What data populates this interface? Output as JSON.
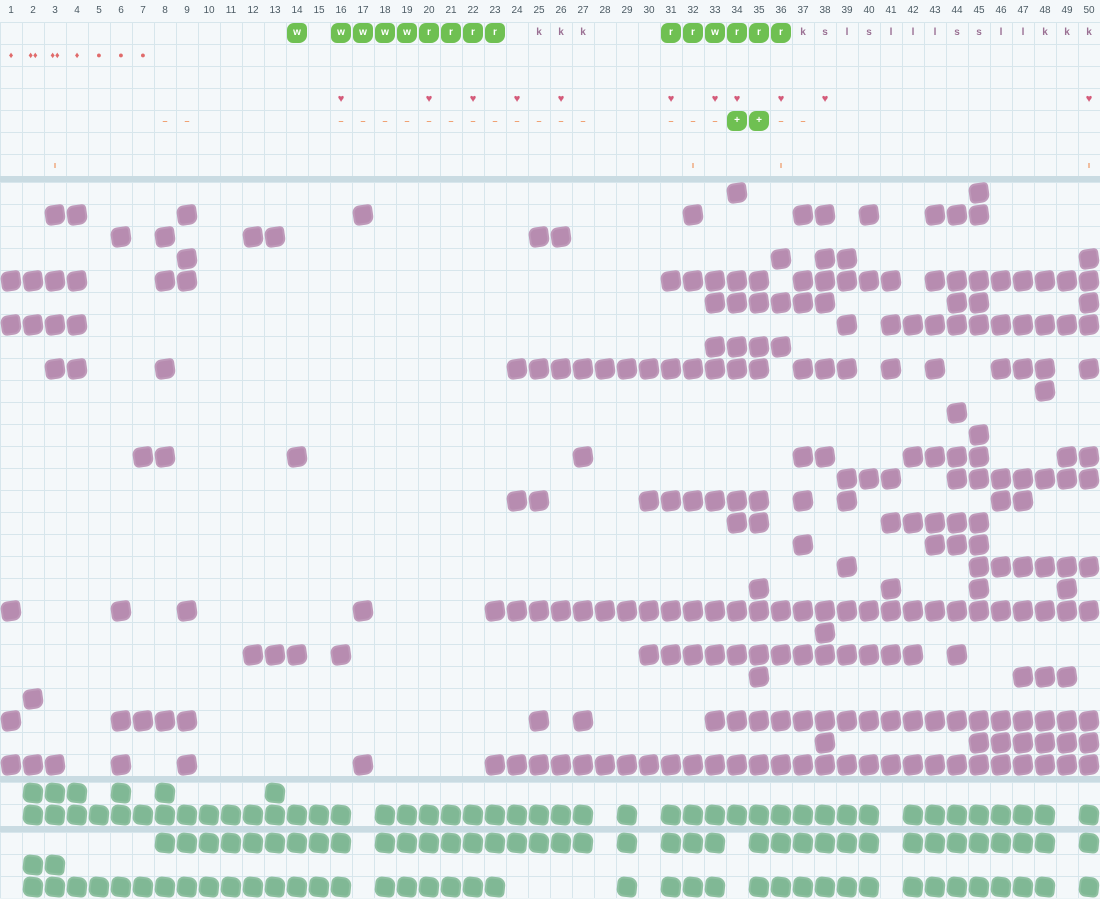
{
  "columns": [
    "1",
    "2",
    "3",
    "4",
    "5",
    "6",
    "7",
    "8",
    "9",
    "10",
    "11",
    "12",
    "13",
    "14",
    "15",
    "16",
    "17",
    "18",
    "19",
    "20",
    "21",
    "22",
    "23",
    "24",
    "25",
    "26",
    "27",
    "28",
    "29",
    "30",
    "31",
    "32",
    "33",
    "34",
    "35",
    "36",
    "37",
    "38",
    "39",
    "40",
    "41",
    "42",
    "43",
    "44",
    "45",
    "46",
    "47",
    "48",
    "49",
    "50"
  ],
  "colors": {
    "purple": "#b487ad",
    "green": "#7ab590",
    "lime": "#6fc052",
    "drop": "#e06b6b",
    "heart": "#d45b7a",
    "dash": "#ef9c6a",
    "grid": "#d7e6ec"
  },
  "header_rows": {
    "letters": {
      "14": "w",
      "16": "w",
      "17": "w",
      "18": "w",
      "19": "w",
      "20": "r",
      "21": "r",
      "22": "r",
      "23": "r",
      "25": "k",
      "26": "k",
      "27": "k",
      "31": "r",
      "32": "r",
      "33": "w",
      "34": "r",
      "35": "r",
      "36": "r",
      "37": "k",
      "38": "s",
      "39": "l",
      "40": "s",
      "41": "l",
      "42": "l",
      "43": "l",
      "44": "s",
      "45": "s",
      "46": "l",
      "47": "l",
      "48": "k",
      "49": "k",
      "50": "k"
    },
    "lime_cols": [
      "14",
      "16",
      "17",
      "18",
      "19",
      "20",
      "21",
      "22",
      "23",
      "31",
      "32",
      "33",
      "34",
      "35",
      "36"
    ],
    "drops": {
      "1": "♦",
      "2": "♦♦",
      "3": "♦♦",
      "4": "♦",
      "5": "●",
      "6": "●",
      "7": "●"
    },
    "hearts": [
      "16",
      "20",
      "22",
      "24",
      "26",
      "31",
      "33",
      "34",
      "36",
      "38",
      "50"
    ],
    "dashes": [
      "8",
      "9",
      "16",
      "17",
      "18",
      "19",
      "20",
      "21",
      "22",
      "23",
      "24",
      "25",
      "26",
      "27",
      "31",
      "32",
      "33",
      "36",
      "37"
    ],
    "plus_cols": [
      "34",
      "35"
    ],
    "ticks": [
      "3",
      "32",
      "36",
      "50"
    ]
  },
  "purple_rows": [
    [
      34,
      45
    ],
    [
      3,
      4,
      9,
      17,
      32,
      37,
      38,
      40,
      43,
      44,
      45
    ],
    [
      6,
      8,
      12,
      13,
      25,
      26
    ],
    [
      9,
      36,
      38,
      39,
      50
    ],
    [
      1,
      2,
      3,
      4,
      8,
      9,
      31,
      32,
      33,
      34,
      35,
      37,
      38,
      39,
      40,
      41,
      43,
      44,
      45,
      46,
      47,
      48,
      49,
      50
    ],
    [
      33,
      34,
      35,
      36,
      37,
      38,
      44,
      45,
      50
    ],
    [
      1,
      2,
      3,
      4,
      39,
      41,
      42,
      43,
      44,
      45,
      46,
      47,
      48,
      49,
      50
    ],
    [
      33,
      34,
      35,
      36
    ],
    [
      3,
      4,
      8,
      24,
      25,
      26,
      27,
      28,
      29,
      30,
      31,
      32,
      33,
      34,
      35,
      37,
      38,
      39,
      41,
      43,
      46,
      47,
      48,
      50
    ],
    [
      48
    ],
    [
      44
    ],
    [
      45
    ],
    [
      7,
      8,
      14,
      27,
      37,
      38,
      42,
      43,
      44,
      45,
      49,
      50
    ],
    [
      39,
      40,
      41,
      44,
      45,
      46,
      47,
      48,
      49,
      50
    ],
    [
      24,
      25,
      30,
      31,
      32,
      33,
      34,
      35,
      37,
      39,
      46,
      47
    ],
    [
      34,
      35,
      41,
      42,
      43,
      44,
      45
    ],
    [
      37,
      43,
      44,
      45
    ],
    [
      39,
      45,
      46,
      47,
      48,
      49,
      50
    ],
    [
      35,
      41,
      45,
      49
    ],
    [
      1,
      6,
      9,
      17,
      23,
      24,
      25,
      26,
      27,
      28,
      29,
      30,
      31,
      32,
      33,
      34,
      35,
      36,
      37,
      38,
      39,
      40,
      41,
      42,
      43,
      44,
      45,
      46,
      47,
      48,
      49,
      50
    ],
    [
      38
    ],
    [
      12,
      13,
      14,
      16,
      30,
      31,
      32,
      33,
      34,
      35,
      36,
      37,
      38,
      39,
      40,
      41,
      42,
      44
    ],
    [
      35,
      47,
      48,
      49
    ],
    [
      2
    ],
    [
      1,
      6,
      7,
      8,
      9,
      25,
      27,
      33,
      34,
      35,
      36,
      37,
      38,
      39,
      40,
      41,
      42,
      43,
      44,
      45,
      46,
      47,
      48,
      49,
      50
    ],
    [
      38,
      45,
      46,
      47,
      48,
      49,
      50
    ],
    [
      1,
      2,
      3,
      6,
      9,
      17,
      23,
      24,
      25,
      26,
      27,
      28,
      29,
      30,
      31,
      32,
      33,
      34,
      35,
      36,
      37,
      38,
      39,
      40,
      41,
      42,
      43,
      44,
      45,
      46,
      47,
      48,
      49,
      50
    ]
  ],
  "green_rows_a": [
    [
      2,
      3,
      4,
      6,
      8,
      13
    ],
    [
      2,
      3,
      4,
      5,
      6,
      7,
      8,
      9,
      10,
      11,
      12,
      13,
      14,
      15,
      16,
      18,
      19,
      20,
      21,
      22,
      23,
      24,
      25,
      26,
      27,
      29,
      31,
      32,
      33,
      34,
      35,
      36,
      37,
      38,
      39,
      40,
      42,
      43,
      44,
      45,
      46,
      47,
      48,
      50
    ]
  ],
  "green_rows_b": [
    [
      8,
      9,
      10,
      11,
      12,
      13,
      14,
      15,
      16,
      18,
      19,
      20,
      21,
      22,
      23,
      24,
      25,
      26,
      27,
      29,
      31,
      32,
      33,
      35,
      36,
      37,
      38,
      39,
      40,
      42,
      43,
      44,
      45,
      46,
      47,
      48,
      50
    ],
    [
      2,
      3
    ],
    [
      2,
      3,
      4,
      5,
      6,
      7,
      8,
      9,
      10,
      11,
      12,
      13,
      14,
      15,
      16,
      18,
      19,
      20,
      21,
      22,
      23,
      29,
      31,
      32,
      33,
      35,
      36,
      37,
      38,
      39,
      40,
      42,
      43,
      44,
      45,
      46,
      47,
      48,
      50
    ]
  ]
}
